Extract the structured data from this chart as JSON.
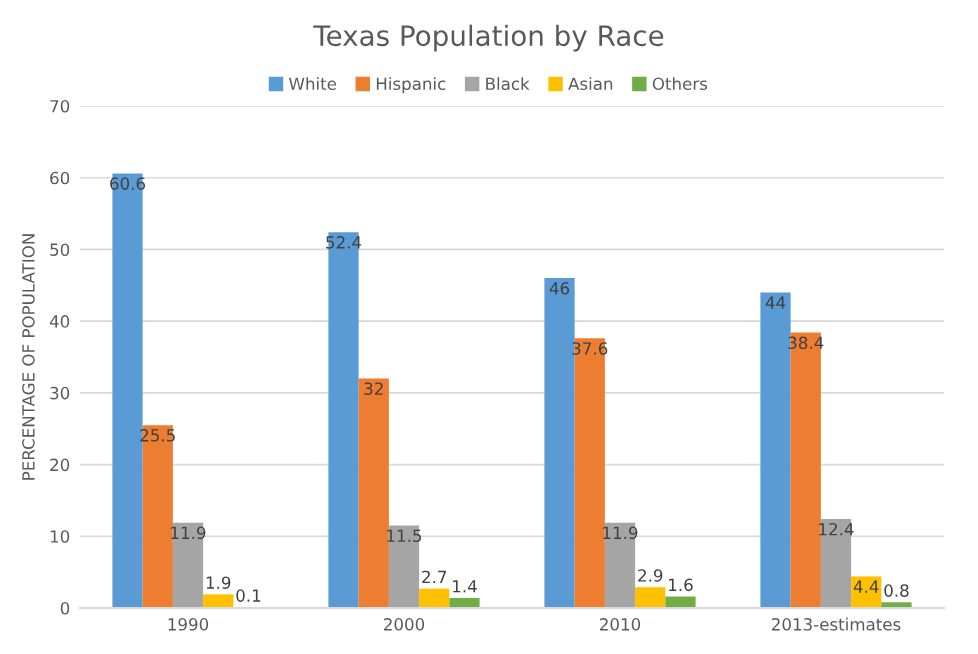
{
  "chart_data": {
    "type": "bar",
    "title": "Texas Population by Race",
    "ylabel": "PERCENTAGE OF POPULATION",
    "categories": [
      "1990",
      "2000",
      "2010",
      "2013-estimates"
    ],
    "series": [
      {
        "name": "White",
        "color": "#5b9bd5",
        "values": [
          60.6,
          52.4,
          46,
          44
        ]
      },
      {
        "name": "Hispanic",
        "color": "#ed7d31",
        "values": [
          25.5,
          32,
          37.6,
          38.4
        ]
      },
      {
        "name": "Black",
        "color": "#a5a5a5",
        "values": [
          11.9,
          11.5,
          11.9,
          12.4
        ]
      },
      {
        "name": "Asian",
        "color": "#ffc000",
        "values": [
          1.9,
          2.7,
          2.9,
          4.4
        ]
      },
      {
        "name": "Others",
        "color": "#70ad47",
        "values": [
          0.1,
          1.4,
          1.6,
          0.8
        ]
      }
    ],
    "ylim": [
      0,
      70
    ],
    "yticks": [
      0,
      10,
      20,
      30,
      40,
      50,
      60,
      70
    ],
    "grid": "y",
    "legend": "top",
    "data_labels": true
  }
}
